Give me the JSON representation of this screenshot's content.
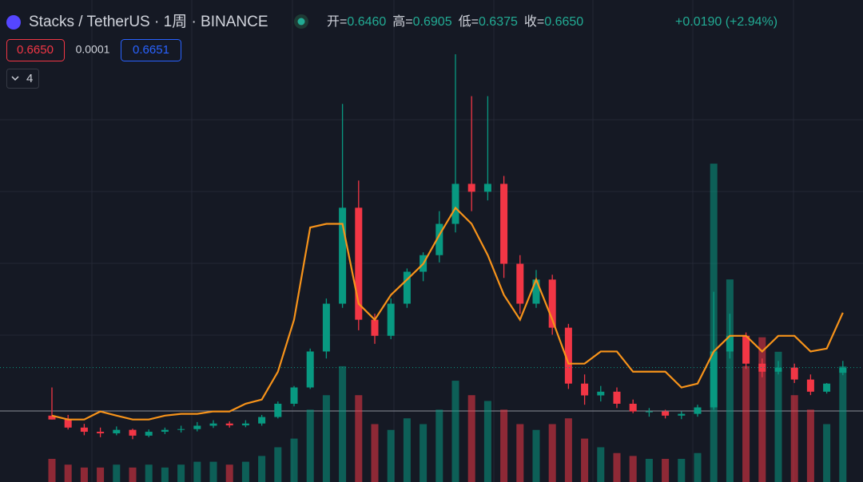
{
  "header": {
    "symbol": "Stacks / TetherUS · 1周 · BINANCE",
    "ohlc": [
      {
        "label": "开=",
        "value": "0.6460"
      },
      {
        "label": "高=",
        "value": "0.6905"
      },
      {
        "label": "低=",
        "value": "0.6375"
      },
      {
        "label": "收=",
        "value": "0.6650"
      }
    ],
    "change": "+0.0190 (+2.94%)",
    "sell": "0.6650",
    "spread": "0.0001",
    "buy": "0.6651",
    "indicators": "4"
  },
  "chart_data": {
    "type": "candlestick",
    "log_scale": true,
    "ylim": [
      0.35,
      4.0
    ],
    "up_color": "#089981",
    "down_color": "#f23645",
    "open": [
      0.508,
      0.497,
      0.475,
      0.464,
      0.46,
      0.469,
      0.454,
      0.464,
      0.469,
      0.471,
      0.48,
      0.486,
      0.481,
      0.486,
      0.504,
      0.543,
      0.595,
      0.728,
      0.952,
      1.631,
      0.87,
      0.795,
      0.952,
      1.139,
      1.25,
      1.49,
      1.865,
      1.784,
      1.865,
      1.191,
      0.952,
      1.09,
      0.832,
      0.608,
      0.569,
      0.581,
      0.543,
      0.52,
      0.52,
      0.508,
      0.513,
      0.532,
      0.728,
      0.795,
      0.68,
      0.65,
      0.665,
      0.622,
      0.581,
      0.646
    ],
    "high": [
      0.595,
      0.51,
      0.485,
      0.475,
      0.478,
      0.472,
      0.47,
      0.475,
      0.48,
      0.49,
      0.495,
      0.492,
      0.495,
      0.51,
      0.55,
      0.6,
      0.74,
      0.98,
      2.92,
      1.9,
      0.9,
      0.98,
      1.16,
      1.27,
      1.6,
      3.86,
      3.05,
      3.05,
      1.95,
      1.25,
      1.15,
      1.12,
      0.85,
      0.64,
      0.6,
      0.595,
      0.556,
      0.53,
      0.525,
      0.52,
      0.54,
      1.018,
      0.9,
      0.81,
      0.7,
      0.69,
      0.68,
      0.64,
      0.61,
      0.6905
    ],
    "low": [
      0.497,
      0.47,
      0.455,
      0.45,
      0.455,
      0.445,
      0.45,
      0.458,
      0.462,
      0.465,
      0.474,
      0.475,
      0.476,
      0.48,
      0.5,
      0.535,
      0.59,
      0.7,
      0.93,
      0.82,
      0.76,
      0.78,
      0.93,
      1.08,
      1.2,
      1.42,
      1.6,
      1.7,
      1.1,
      0.9,
      0.93,
      0.8,
      0.59,
      0.54,
      0.55,
      0.53,
      0.515,
      0.505,
      0.5,
      0.498,
      0.505,
      0.525,
      0.7,
      0.66,
      0.63,
      0.64,
      0.61,
      0.57,
      0.575,
      0.6375
    ],
    "close": [
      0.497,
      0.475,
      0.464,
      0.46,
      0.469,
      0.454,
      0.464,
      0.469,
      0.471,
      0.48,
      0.486,
      0.481,
      0.486,
      0.504,
      0.543,
      0.595,
      0.728,
      0.952,
      1.631,
      0.87,
      0.795,
      0.952,
      1.139,
      1.25,
      1.49,
      1.865,
      1.784,
      1.865,
      1.191,
      0.952,
      1.09,
      0.832,
      0.608,
      0.569,
      0.581,
      0.543,
      0.52,
      0.52,
      0.508,
      0.513,
      0.532,
      0.728,
      0.795,
      0.68,
      0.65,
      0.665,
      0.622,
      0.581,
      0.608,
      0.665
    ],
    "ma": {
      "color": "#f7931a",
      "values": [
        0.508,
        0.497,
        0.497,
        0.52,
        0.508,
        0.497,
        0.497,
        0.508,
        0.513,
        0.513,
        0.52,
        0.52,
        0.543,
        0.556,
        0.65,
        0.87,
        1.46,
        1.49,
        1.49,
        0.952,
        0.87,
        1.0,
        1.09,
        1.19,
        1.4,
        1.63,
        1.49,
        1.25,
        1.0,
        0.87,
        1.09,
        0.87,
        0.68,
        0.68,
        0.728,
        0.728,
        0.65,
        0.65,
        0.65,
        0.595,
        0.608,
        0.728,
        0.795,
        0.795,
        0.728,
        0.795,
        0.795,
        0.728,
        0.74,
        0.905
      ]
    },
    "volume": {
      "ylim": [
        0,
        150
      ],
      "values": [
        8,
        6,
        5,
        5,
        6,
        5,
        6,
        5,
        6,
        7,
        7,
        6,
        7,
        9,
        12,
        15,
        25,
        30,
        40,
        30,
        20,
        18,
        22,
        20,
        25,
        35,
        30,
        28,
        25,
        20,
        18,
        20,
        22,
        15,
        12,
        10,
        9,
        8,
        8,
        8,
        10,
        110,
        70,
        40,
        50,
        45,
        30,
        25,
        20,
        40
      ]
    }
  }
}
